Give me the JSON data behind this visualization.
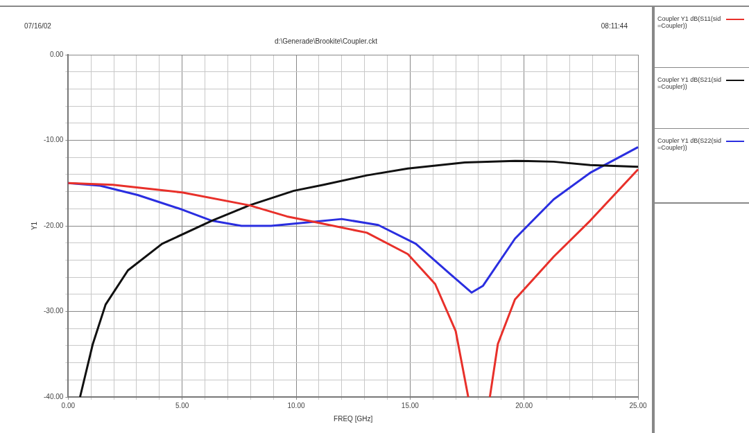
{
  "chart_data": {
    "type": "line",
    "subtitle": "d:\\Generade\\Brookite\\Coupler.ckt",
    "xlabel": "FREQ [GHz]",
    "ylabel": "Y1",
    "annotations": [
      "07/16/02",
      "08:11:44"
    ],
    "xlim": [
      0,
      25
    ],
    "ylim": [
      -40,
      0
    ],
    "xticks": [
      {
        "value": 0,
        "label": "0.00"
      },
      {
        "value": 1,
        "label": null
      },
      {
        "value": 2,
        "label": null
      },
      {
        "value": 3,
        "label": null
      },
      {
        "value": 4,
        "label": null
      },
      {
        "value": 5,
        "label": "5.00"
      },
      {
        "value": 6,
        "label": null
      },
      {
        "value": 7,
        "label": null
      },
      {
        "value": 8,
        "label": null
      },
      {
        "value": 9,
        "label": null
      },
      {
        "value": 10,
        "label": "10.00"
      },
      {
        "value": 11,
        "label": null
      },
      {
        "value": 12,
        "label": null
      },
      {
        "value": 13,
        "label": null
      },
      {
        "value": 14,
        "label": null
      },
      {
        "value": 15,
        "label": "15.00"
      },
      {
        "value": 16,
        "label": null
      },
      {
        "value": 17,
        "label": null
      },
      {
        "value": 18,
        "label": null
      },
      {
        "value": 19,
        "label": null
      },
      {
        "value": 20,
        "label": "20.00"
      },
      {
        "value": 21,
        "label": null
      },
      {
        "value": 22,
        "label": null
      },
      {
        "value": 23,
        "label": null
      },
      {
        "value": 24,
        "label": null
      },
      {
        "value": 25,
        "label": "25.00"
      }
    ],
    "yticks": [
      {
        "value": -40,
        "label": "-40.00"
      },
      {
        "value": -38,
        "label": null
      },
      {
        "value": -36,
        "label": null
      },
      {
        "value": -34,
        "label": null
      },
      {
        "value": -32,
        "label": null
      },
      {
        "value": -30,
        "label": "-30.00"
      },
      {
        "value": -28,
        "label": null
      },
      {
        "value": -26,
        "label": null
      },
      {
        "value": -24,
        "label": null
      },
      {
        "value": -22,
        "label": null
      },
      {
        "value": -20,
        "label": "-20.00"
      },
      {
        "value": -18,
        "label": null
      },
      {
        "value": -16,
        "label": null
      },
      {
        "value": -14,
        "label": null
      },
      {
        "value": -12,
        "label": null
      },
      {
        "value": -10,
        "label": "-10.00"
      },
      {
        "value": -8,
        "label": null
      },
      {
        "value": -6,
        "label": null
      },
      {
        "value": -4,
        "label": null
      },
      {
        "value": -2,
        "label": null
      },
      {
        "value": 0,
        "label": "0.00"
      }
    ],
    "grid": true,
    "legend": "right",
    "series": [
      {
        "name": "Coupler Y1 dB(S11(sid=Coupler))",
        "color": "#e8302a",
        "x": [
          0,
          1.96,
          5.0,
          7.95,
          9.6,
          10.9,
          13.1,
          14.9,
          16.1,
          17.0,
          17.55,
          18.0,
          18.5,
          18.85,
          19.6,
          21.3,
          22.9,
          25
        ],
        "values": [
          -15.0,
          -15.2,
          -16.1,
          -17.6,
          -18.9,
          -19.6,
          -20.8,
          -23.3,
          -26.8,
          -32.3,
          -40,
          null,
          -40,
          -33.8,
          -28.6,
          -23.6,
          -19.4,
          -13.4
        ]
      },
      {
        "name": "Coupler Y1 dB(S21(sid=Coupler))",
        "color": "#111111",
        "x": [
          0.52,
          1.08,
          1.64,
          2.62,
          4.12,
          6.3,
          7.95,
          9.9,
          11.2,
          13.1,
          14.9,
          17.4,
          19.6,
          21.3,
          22.9,
          25
        ],
        "values": [
          -40,
          -33.8,
          -29.2,
          -25.2,
          -22.1,
          -19.4,
          -17.6,
          -15.9,
          -15.2,
          -14.1,
          -13.3,
          -12.6,
          -12.4,
          -12.5,
          -12.9,
          -13.1
        ]
      },
      {
        "name": "Coupler Y1 dB(S22(sid=Coupler))",
        "color": "#2a2ee0",
        "x": [
          0,
          1.4,
          3.05,
          5.0,
          6.3,
          7.6,
          8.9,
          10.5,
          12.0,
          13.6,
          15.25,
          16.7,
          17.7,
          18.2,
          19.6,
          21.3,
          22.9,
          25
        ],
        "values": [
          -15.0,
          -15.3,
          -16.4,
          -18.1,
          -19.4,
          -20.0,
          -20.0,
          -19.6,
          -19.2,
          -19.9,
          -22.1,
          -25.5,
          -27.8,
          -27.0,
          -21.5,
          -16.9,
          -13.8,
          -10.8
        ]
      }
    ]
  }
}
